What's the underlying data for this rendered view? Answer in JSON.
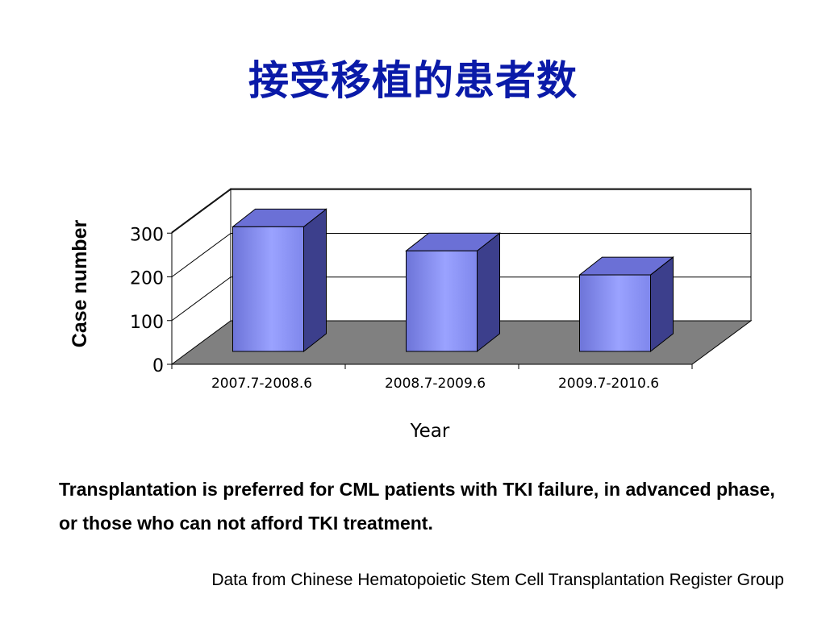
{
  "slide": {
    "title": "接受移植的患者数",
    "note": "Transplantation is preferred for CML patients with TKI failure, in advanced phase, or those who can not afford TKI treatment.",
    "source": "Data from Chinese Hematopoietic Stem Cell Transplantation Register Group"
  },
  "chart_data": {
    "type": "bar",
    "title": "",
    "xlabel": "Year",
    "ylabel": "Case number",
    "categories": [
      "2007.7-2008.6",
      "2008.7-2009.6",
      "2009.7-2010.6"
    ],
    "values": [
      285,
      230,
      175
    ],
    "ylim": [
      0,
      300
    ],
    "yticks": [
      0,
      100,
      200,
      300
    ],
    "grid": true,
    "style": "3d",
    "colors": {
      "bar_front": "#8c94f4",
      "bar_top": "#6b70d6",
      "bar_side": "#3c3f8c",
      "floor": "#808080",
      "grid": "#000000"
    }
  }
}
